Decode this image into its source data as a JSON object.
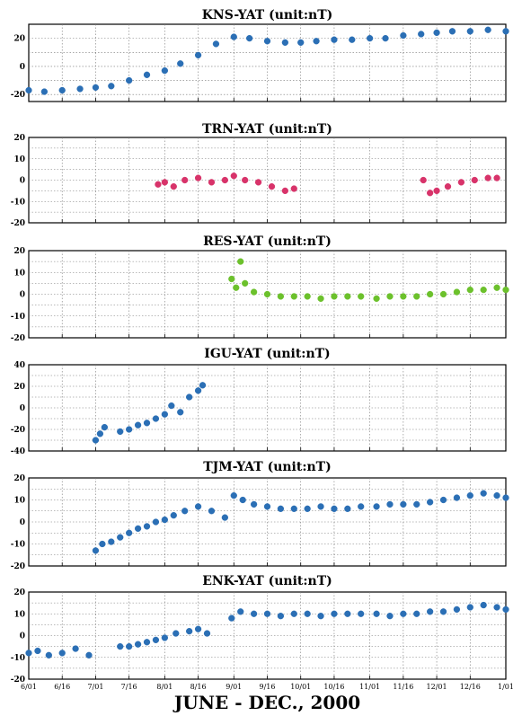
{
  "figure_title": "JUNE - DEC., 2000",
  "colors": {
    "blue": "#2b6fb5",
    "red": "#d8336a",
    "green": "#6cc12c",
    "grid": "#777777",
    "frame": "#000000"
  },
  "chart_data": [
    {
      "type": "scatter",
      "title": "KNS-YAT (unit:nT)",
      "color": "#2b6fb5",
      "ylim": [
        -25,
        30
      ],
      "yticks": [
        -20,
        0,
        20
      ],
      "xticks": [
        "6/01",
        "6/16",
        "7/01",
        "7/16",
        "8/01",
        "8/16",
        "9/01",
        "9/16",
        "10/01",
        "10/16",
        "11/01",
        "11/16",
        "12/01",
        "12/16",
        "1/01"
      ],
      "x_tick_labels_visible": false,
      "grid": true,
      "x": [
        "6/01",
        "6/08",
        "6/16",
        "6/24",
        "7/01",
        "7/08",
        "7/16",
        "7/24",
        "8/01",
        "8/08",
        "8/16",
        "8/24",
        "9/01",
        "9/08",
        "9/16",
        "9/24",
        "10/01",
        "10/08",
        "10/16",
        "10/24",
        "11/01",
        "11/08",
        "11/16",
        "11/24",
        "12/01",
        "12/08",
        "12/16",
        "12/24",
        "1/01"
      ],
      "y": [
        -17,
        -18,
        -17,
        -16,
        -15,
        -14,
        -10,
        -6,
        -3,
        2,
        8,
        16,
        21,
        20,
        18,
        17,
        17,
        18,
        19,
        19,
        20,
        20,
        22,
        23,
        24,
        25,
        25,
        26,
        25
      ]
    },
    {
      "type": "scatter",
      "title": "TRN-YAT (unit:nT)",
      "color": "#d8336a",
      "ylim": [
        -20,
        20
      ],
      "yticks": [
        -20,
        -10,
        0,
        10,
        20
      ],
      "xticks": [
        "6/01",
        "6/16",
        "7/01",
        "7/16",
        "8/01",
        "8/16",
        "9/01",
        "9/16",
        "10/01",
        "10/16",
        "11/01",
        "11/16",
        "12/01",
        "12/16",
        "1/01"
      ],
      "x_tick_labels_visible": false,
      "grid": true,
      "x": [
        "7/29",
        "8/01",
        "8/05",
        "8/10",
        "8/16",
        "8/22",
        "8/28",
        "9/01",
        "9/06",
        "9/12",
        "9/18",
        "9/24",
        "9/28",
        "11/25",
        "11/28",
        "12/01",
        "12/06",
        "12/12",
        "12/18",
        "12/24",
        "12/28"
      ],
      "y": [
        -2,
        -1,
        -3,
        0,
        1,
        -1,
        0,
        2,
        0,
        -1,
        -3,
        -5,
        -4,
        0,
        -6,
        -5,
        -3,
        -1,
        0,
        1,
        1
      ]
    },
    {
      "type": "scatter",
      "title": "RES-YAT (unit:nT)",
      "color": "#6cc12c",
      "ylim": [
        -20,
        20
      ],
      "yticks": [
        -20,
        -10,
        0,
        10,
        20
      ],
      "xticks": [
        "6/01",
        "6/16",
        "7/01",
        "7/16",
        "8/01",
        "8/16",
        "9/01",
        "9/16",
        "10/01",
        "10/16",
        "11/01",
        "11/16",
        "12/01",
        "12/16",
        "1/01"
      ],
      "x_tick_labels_visible": false,
      "grid": true,
      "x": [
        "8/31",
        "9/02",
        "9/04",
        "9/06",
        "9/10",
        "9/16",
        "9/22",
        "9/28",
        "10/04",
        "10/10",
        "10/16",
        "10/22",
        "10/28",
        "11/04",
        "11/10",
        "11/16",
        "11/22",
        "11/28",
        "12/04",
        "12/10",
        "12/16",
        "12/22",
        "12/28",
        "1/01"
      ],
      "y": [
        7,
        3,
        15,
        5,
        1,
        0,
        -1,
        -1,
        -1,
        -2,
        -1,
        -1,
        -1,
        -2,
        -1,
        -1,
        -1,
        0,
        0,
        1,
        2,
        2,
        3,
        2
      ]
    },
    {
      "type": "scatter",
      "title": "IGU-YAT (unit:nT)",
      "color": "#2b6fb5",
      "ylim": [
        -40,
        40
      ],
      "yticks": [
        -40,
        -20,
        0,
        20,
        40
      ],
      "xticks": [
        "6/01",
        "6/16",
        "7/01",
        "7/16",
        "8/01",
        "8/16",
        "9/01",
        "9/16",
        "10/01",
        "10/16",
        "11/01",
        "11/16",
        "12/01",
        "12/16",
        "1/01"
      ],
      "x_tick_labels_visible": false,
      "grid": true,
      "x": [
        "7/01",
        "7/03",
        "7/05",
        "7/12",
        "7/16",
        "7/20",
        "7/24",
        "7/28",
        "8/01",
        "8/04",
        "8/08",
        "8/12",
        "8/16",
        "8/18"
      ],
      "y": [
        -30,
        -24,
        -18,
        -22,
        -20,
        -16,
        -14,
        -10,
        -6,
        2,
        -4,
        10,
        16,
        21
      ]
    },
    {
      "type": "scatter",
      "title": "TJM-YAT (unit:nT)",
      "color": "#2b6fb5",
      "ylim": [
        -20,
        20
      ],
      "yticks": [
        -20,
        -10,
        0,
        10,
        20
      ],
      "xticks": [
        "6/01",
        "6/16",
        "7/01",
        "7/16",
        "8/01",
        "8/16",
        "9/01",
        "9/16",
        "10/01",
        "10/16",
        "11/01",
        "11/16",
        "12/01",
        "12/16",
        "1/01"
      ],
      "x_tick_labels_visible": false,
      "grid": true,
      "x": [
        "7/01",
        "7/04",
        "7/08",
        "7/12",
        "7/16",
        "7/20",
        "7/24",
        "7/28",
        "8/01",
        "8/05",
        "8/10",
        "8/16",
        "8/22",
        "8/28",
        "9/01",
        "9/05",
        "9/10",
        "9/16",
        "9/22",
        "9/28",
        "10/04",
        "10/10",
        "10/16",
        "10/22",
        "10/28",
        "11/04",
        "11/10",
        "11/16",
        "11/22",
        "11/28",
        "12/04",
        "12/10",
        "12/16",
        "12/22",
        "12/28",
        "1/01"
      ],
      "y": [
        -13,
        -10,
        -9,
        -7,
        -5,
        -3,
        -2,
        0,
        1,
        3,
        5,
        7,
        5,
        2,
        12,
        10,
        8,
        7,
        6,
        6,
        6,
        7,
        6,
        6,
        7,
        7,
        8,
        8,
        8,
        9,
        10,
        11,
        12,
        13,
        12,
        11
      ]
    },
    {
      "type": "scatter",
      "title": "ENK-YAT (unit:nT)",
      "color": "#2b6fb5",
      "ylim": [
        -20,
        20
      ],
      "yticks": [
        -20,
        -10,
        0,
        10,
        20
      ],
      "xticks": [
        "6/01",
        "6/16",
        "7/01",
        "7/16",
        "8/01",
        "8/16",
        "9/01",
        "9/16",
        "10/01",
        "10/16",
        "11/01",
        "11/16",
        "12/01",
        "12/16",
        "1/01"
      ],
      "x_tick_labels_visible": true,
      "grid": true,
      "x": [
        "6/01",
        "6/05",
        "6/10",
        "6/16",
        "6/22",
        "6/28",
        "7/12",
        "7/16",
        "7/20",
        "7/24",
        "7/28",
        "8/01",
        "8/06",
        "8/12",
        "8/16",
        "8/20",
        "8/31",
        "9/04",
        "9/10",
        "9/16",
        "9/22",
        "9/28",
        "10/04",
        "10/10",
        "10/16",
        "10/22",
        "10/28",
        "11/04",
        "11/10",
        "11/16",
        "11/22",
        "11/28",
        "12/04",
        "12/10",
        "12/16",
        "12/22",
        "12/28",
        "1/01"
      ],
      "y": [
        -8,
        -7,
        -9,
        -8,
        -6,
        -9,
        -5,
        -5,
        -4,
        -3,
        -2,
        -1,
        1,
        2,
        3,
        1,
        8,
        11,
        10,
        10,
        9,
        10,
        10,
        9,
        10,
        10,
        10,
        10,
        9,
        10,
        10,
        11,
        11,
        12,
        13,
        14,
        13,
        12
      ]
    }
  ]
}
